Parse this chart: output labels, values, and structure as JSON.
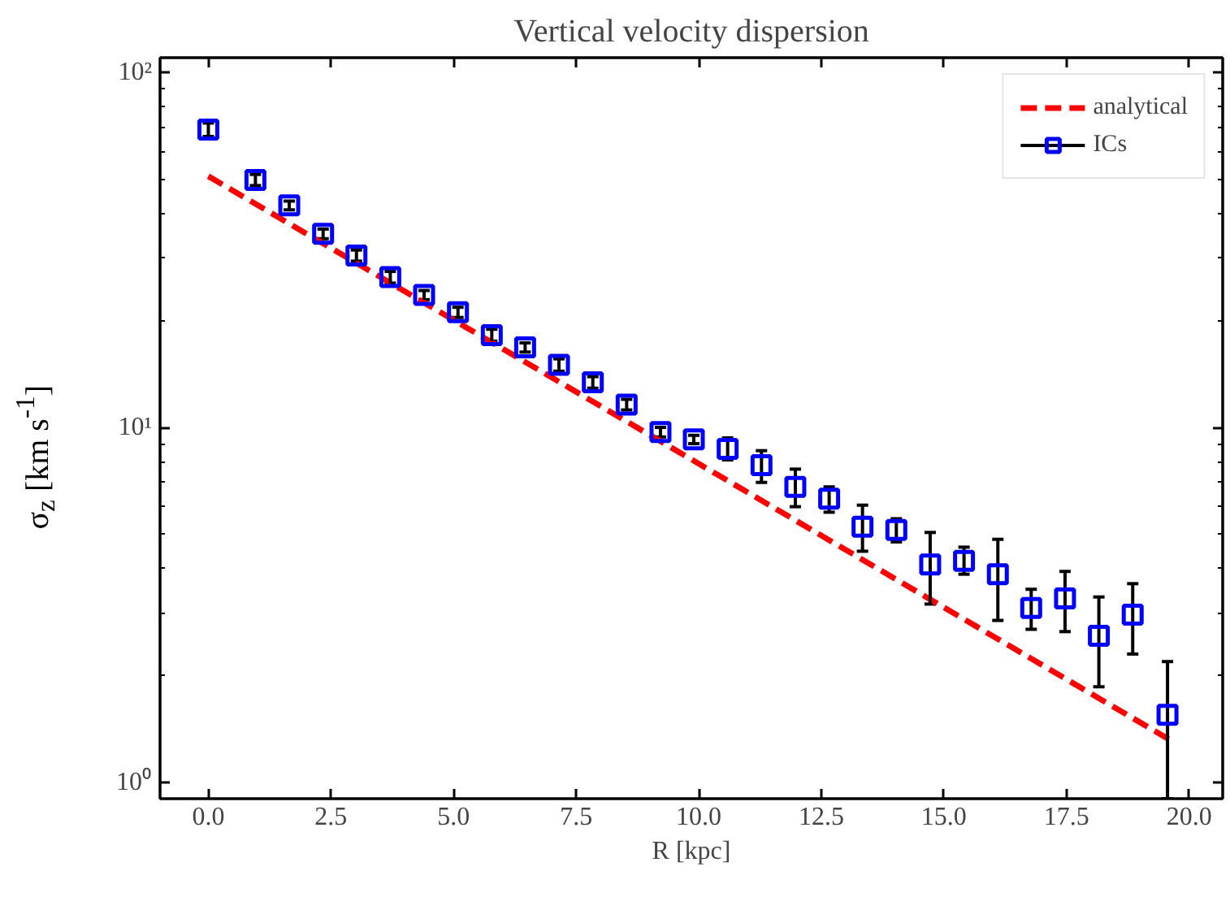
{
  "chart_data": {
    "type": "scatter",
    "title": "Vertical velocity dispersion",
    "xlabel": "R [kpc]",
    "ylabel": "σ$_{z}$ [km s$^{-1}$]",
    "log": "y",
    "grid": false,
    "legend": "top right",
    "xlim": [
      -0.985,
      20.685
    ],
    "xticks": [
      {
        "value": 0,
        "label": "0.0"
      },
      {
        "value": 2.5,
        "label": "2.5"
      },
      {
        "value": 5,
        "label": "5.0"
      },
      {
        "value": 7.5,
        "label": "7.5"
      },
      {
        "value": 10,
        "label": "10.0"
      },
      {
        "value": 12.5,
        "label": "12.5"
      },
      {
        "value": 15,
        "label": "15.0"
      },
      {
        "value": 17.5,
        "label": "17.5"
      },
      {
        "value": 20,
        "label": "20.0"
      }
    ],
    "ylim": [
      0.9,
      110
    ],
    "yticks": [
      {
        "value": 1,
        "label": "10⁰"
      },
      {
        "value": 10,
        "label": "10¹"
      },
      {
        "value": 100,
        "label": "10²"
      }
    ],
    "series": [
      {
        "name": "analytical",
        "type": "line",
        "line_style": "dashed",
        "marker": "none",
        "color": "#ff0000",
        "x": [
          0,
          19.6
        ],
        "values": [
          51,
          1.32
        ]
      },
      {
        "name": "ICs",
        "marker": "square",
        "color": "#0000ff",
        "x": [
          0,
          0.96,
          1.65,
          2.34,
          3.02,
          3.71,
          4.4,
          5.09,
          5.78,
          6.46,
          7.15,
          7.84,
          8.53,
          9.22,
          9.9,
          10.59,
          11.28,
          11.97,
          12.66,
          13.34,
          14.03,
          14.72,
          15.41,
          16.1,
          16.78,
          17.47,
          18.16,
          18.85,
          19.56
        ],
        "values": [
          69,
          49.8,
          42.2,
          35.1,
          30.5,
          26.5,
          23.6,
          21.1,
          18.2,
          16.8,
          15.0,
          13.4,
          11.6,
          9.7,
          9.26,
          8.7,
          7.83,
          6.8,
          6.3,
          5.25,
          5.14,
          4.11,
          4.21,
          3.86,
          3.1,
          3.3,
          2.59,
          2.97,
          1.55
        ],
        "errors": [
          [
            66,
            72
          ],
          [
            48,
            51.6
          ],
          [
            41,
            43.4
          ],
          [
            34,
            36.2
          ],
          [
            29.4,
            31.6
          ],
          [
            25.5,
            27.5
          ],
          [
            22.9,
            24.3
          ],
          [
            20.4,
            21.8
          ],
          [
            17.5,
            18.9
          ],
          [
            16.3,
            17.3
          ],
          [
            14.4,
            15.6
          ],
          [
            12.9,
            13.9
          ],
          [
            11.2,
            12
          ],
          [
            9.4,
            10
          ],
          [
            9.0,
            9.5
          ],
          [
            8.1,
            9.34
          ],
          [
            7.0,
            8.6
          ],
          [
            5.98,
            7.63
          ],
          [
            5.77,
            6.8
          ],
          [
            4.48,
            6.04
          ],
          [
            4.76,
            5.53
          ],
          [
            3.18,
            5.06
          ],
          [
            3.86,
            4.6
          ],
          [
            2.86,
            4.84
          ],
          [
            2.7,
            3.5
          ],
          [
            2.66,
            3.93
          ],
          [
            1.86,
            3.33
          ],
          [
            2.3,
            3.63
          ],
          [
            0.9,
            2.19
          ]
        ]
      }
    ]
  }
}
